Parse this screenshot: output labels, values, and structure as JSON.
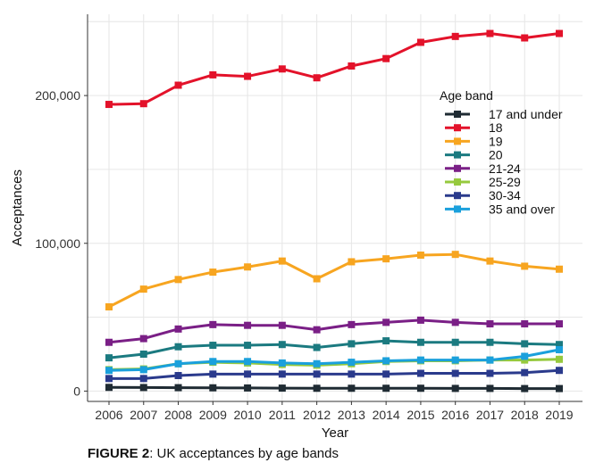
{
  "caption": {
    "label": "FIGURE 2",
    "text": ": UK acceptances by age bands"
  },
  "chart_data": {
    "type": "line",
    "title": "",
    "xlabel": "Year",
    "ylabel": "Acceptances",
    "x": [
      2006,
      2007,
      2008,
      2009,
      2010,
      2011,
      2012,
      2013,
      2014,
      2015,
      2016,
      2017,
      2018,
      2019
    ],
    "ylim": [
      -7000,
      255000
    ],
    "yticks": [
      0,
      100000,
      200000
    ],
    "ytick_labels": [
      "0",
      "100,000",
      "200,000"
    ],
    "grid": true,
    "legend_title": "Age band",
    "legend_position": "right",
    "series": [
      {
        "name": "17 and under",
        "color": "#1f2b33",
        "values": [
          2500,
          2400,
          2300,
          2200,
          2100,
          2000,
          1900,
          1900,
          1900,
          1900,
          1800,
          1800,
          1700,
          1700
        ]
      },
      {
        "name": "18",
        "color": "#e3122a",
        "values": [
          194000,
          194500,
          207000,
          214000,
          213000,
          218000,
          212000,
          220000,
          225000,
          236000,
          240000,
          242000,
          239000,
          242000
        ]
      },
      {
        "name": "19",
        "color": "#f7a520",
        "values": [
          57000,
          69000,
          75500,
          80500,
          84000,
          88000,
          76000,
          87500,
          89500,
          92000,
          92500,
          88000,
          84500,
          82500
        ]
      },
      {
        "name": "20",
        "color": "#1b7a80",
        "values": [
          22500,
          25000,
          30000,
          31000,
          31000,
          31500,
          29500,
          32000,
          34000,
          33000,
          33000,
          33000,
          32000,
          31500
        ]
      },
      {
        "name": "21-24",
        "color": "#7a1f86",
        "values": [
          33000,
          35500,
          42000,
          45000,
          44500,
          44500,
          41500,
          45000,
          46500,
          48000,
          46500,
          45500,
          45500,
          45500
        ]
      },
      {
        "name": "25-29",
        "color": "#96c93d",
        "values": [
          14500,
          15000,
          18500,
          19500,
          19000,
          18000,
          17500,
          18500,
          20000,
          20500,
          20500,
          21000,
          21000,
          21500
        ]
      },
      {
        "name": "30-34",
        "color": "#2a3a8c",
        "values": [
          8500,
          8500,
          10500,
          11500,
          11500,
          11500,
          11500,
          11500,
          11500,
          12000,
          12000,
          12000,
          12500,
          14000
        ]
      },
      {
        "name": "35 and over",
        "color": "#1aa0dc",
        "values": [
          14000,
          14500,
          18500,
          20000,
          20000,
          19000,
          18500,
          19500,
          20500,
          21000,
          21000,
          21000,
          23500,
          28000
        ]
      }
    ]
  }
}
